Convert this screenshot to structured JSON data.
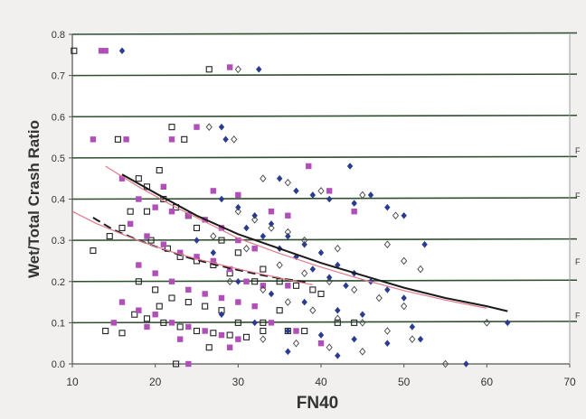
{
  "chart_data": {
    "type": "scatter",
    "xlabel": "FN40",
    "ylabel": "Wet/Total Crash Ratio",
    "xlim": [
      10,
      70
    ],
    "ylim": [
      0.0,
      0.8
    ],
    "x_ticks": [
      "10",
      "20",
      "30",
      "40",
      "50",
      "60",
      "70"
    ],
    "y_ticks": [
      "0.0",
      "0.1",
      "0.2",
      "0.3",
      "0.4",
      "0.5",
      "0.6",
      "0.7",
      "0.8"
    ],
    "grid": true,
    "right_edge_labels": [
      "F",
      "F",
      "F",
      "F"
    ],
    "colors": {
      "background": "#f1f0ee",
      "plot_area": "#ffffff",
      "gridline": "#2f4f2f",
      "axis": "#555555",
      "text": "#333333",
      "blue_diamond": "#2b3c8f",
      "open_diamond": "#444444",
      "open_square": "#222222",
      "magenta_square": "#b04fb8",
      "fit_black": "#1a1a1a",
      "fit_red": "#e07a8a"
    },
    "series": [
      {
        "marker": "open-square",
        "points": [
          [
            10.2,
            0.76
          ],
          [
            15.5,
            0.545
          ],
          [
            20.5,
            0.47
          ],
          [
            22,
            0.575
          ],
          [
            23.5,
            0.545
          ],
          [
            26.5,
            0.715
          ],
          [
            18,
            0.45
          ],
          [
            19,
            0.43
          ],
          [
            21,
            0.4
          ],
          [
            22.5,
            0.38
          ],
          [
            24,
            0.36
          ],
          [
            17,
            0.37
          ],
          [
            16,
            0.33
          ],
          [
            14.5,
            0.31
          ],
          [
            12.5,
            0.275
          ],
          [
            19.5,
            0.3
          ],
          [
            21.5,
            0.28
          ],
          [
            23,
            0.26
          ],
          [
            25,
            0.25
          ],
          [
            27,
            0.24
          ],
          [
            29,
            0.22
          ],
          [
            32,
            0.2
          ],
          [
            18,
            0.2
          ],
          [
            20,
            0.18
          ],
          [
            22,
            0.16
          ],
          [
            24,
            0.15
          ],
          [
            26,
            0.14
          ],
          [
            28,
            0.13
          ],
          [
            17.5,
            0.12
          ],
          [
            19,
            0.11
          ],
          [
            21,
            0.1
          ],
          [
            23,
            0.09
          ],
          [
            25,
            0.08
          ],
          [
            27,
            0.075
          ],
          [
            29,
            0.07
          ],
          [
            31,
            0.065
          ],
          [
            33,
            0.08
          ],
          [
            14,
            0.08
          ],
          [
            16,
            0.075
          ],
          [
            22.5,
            0.0
          ],
          [
            26.5,
            0.04
          ],
          [
            19,
            0.37
          ],
          [
            25,
            0.33
          ],
          [
            28,
            0.3
          ],
          [
            30,
            0.27
          ],
          [
            33,
            0.23
          ],
          [
            35,
            0.2
          ],
          [
            37,
            0.19
          ],
          [
            39,
            0.18
          ],
          [
            40,
            0.17
          ],
          [
            42,
            0.1
          ],
          [
            44,
            0.1
          ],
          [
            30,
            0.1
          ],
          [
            33,
            0.1
          ],
          [
            36,
            0.08
          ],
          [
            38,
            0.08
          ],
          [
            20.5,
            0.14
          ],
          [
            35,
            0.13
          ]
        ]
      },
      {
        "marker": "magenta-square",
        "points": [
          [
            13.5,
            0.76
          ],
          [
            14,
            0.76
          ],
          [
            29,
            0.72
          ],
          [
            12.5,
            0.545
          ],
          [
            16.5,
            0.545
          ],
          [
            25,
            0.575
          ],
          [
            22,
            0.545
          ],
          [
            38.5,
            0.48
          ],
          [
            16,
            0.45
          ],
          [
            18,
            0.4
          ],
          [
            20,
            0.38
          ],
          [
            22,
            0.37
          ],
          [
            24,
            0.36
          ],
          [
            26,
            0.35
          ],
          [
            28,
            0.33
          ],
          [
            30,
            0.3
          ],
          [
            32,
            0.28
          ],
          [
            17,
            0.34
          ],
          [
            19,
            0.31
          ],
          [
            21,
            0.29
          ],
          [
            23,
            0.27
          ],
          [
            25,
            0.26
          ],
          [
            27,
            0.25
          ],
          [
            29,
            0.23
          ],
          [
            31,
            0.2
          ],
          [
            33,
            0.19
          ],
          [
            36,
            0.19
          ],
          [
            18,
            0.24
          ],
          [
            20,
            0.22
          ],
          [
            22,
            0.2
          ],
          [
            24,
            0.18
          ],
          [
            26,
            0.17
          ],
          [
            28,
            0.16
          ],
          [
            30,
            0.15
          ],
          [
            32,
            0.14
          ],
          [
            16,
            0.15
          ],
          [
            18,
            0.13
          ],
          [
            20,
            0.12
          ],
          [
            22,
            0.1
          ],
          [
            24,
            0.09
          ],
          [
            26,
            0.08
          ],
          [
            28,
            0.07
          ],
          [
            30,
            0.06
          ],
          [
            15,
            0.1
          ],
          [
            19,
            0.09
          ],
          [
            23,
            0.06
          ],
          [
            29,
            0.04
          ],
          [
            24,
            0.0
          ],
          [
            34,
            0.37
          ],
          [
            36,
            0.36
          ],
          [
            41,
            0.42
          ],
          [
            44,
            0.37
          ],
          [
            34,
            0.1
          ],
          [
            37,
            0.08
          ],
          [
            40,
            0.05
          ],
          [
            21,
            0.43
          ],
          [
            27,
            0.42
          ],
          [
            30,
            0.41
          ]
        ]
      },
      {
        "marker": "blue-diamond",
        "points": [
          [
            16,
            0.76
          ],
          [
            32.5,
            0.715
          ],
          [
            28,
            0.575
          ],
          [
            28.5,
            0.545
          ],
          [
            43.5,
            0.48
          ],
          [
            35,
            0.45
          ],
          [
            37,
            0.42
          ],
          [
            39,
            0.41
          ],
          [
            41,
            0.4
          ],
          [
            44,
            0.39
          ],
          [
            46,
            0.41
          ],
          [
            48,
            0.38
          ],
          [
            50,
            0.36
          ],
          [
            52.5,
            0.29
          ],
          [
            28,
            0.4
          ],
          [
            30,
            0.38
          ],
          [
            32,
            0.36
          ],
          [
            34,
            0.34
          ],
          [
            36,
            0.31
          ],
          [
            38,
            0.29
          ],
          [
            40,
            0.27
          ],
          [
            42,
            0.24
          ],
          [
            44,
            0.22
          ],
          [
            46,
            0.2
          ],
          [
            48,
            0.18
          ],
          [
            50,
            0.16
          ],
          [
            31,
            0.33
          ],
          [
            33,
            0.31
          ],
          [
            35,
            0.28
          ],
          [
            37,
            0.26
          ],
          [
            39,
            0.23
          ],
          [
            41,
            0.21
          ],
          [
            43,
            0.19
          ],
          [
            30,
            0.2
          ],
          [
            34,
            0.17
          ],
          [
            38,
            0.15
          ],
          [
            42,
            0.13
          ],
          [
            45,
            0.12
          ],
          [
            28,
            0.12
          ],
          [
            32,
            0.1
          ],
          [
            36,
            0.08
          ],
          [
            40,
            0.07
          ],
          [
            44,
            0.06
          ],
          [
            48,
            0.05
          ],
          [
            52,
            0.06
          ],
          [
            36,
            0.03
          ],
          [
            42,
            0.02
          ],
          [
            62.5,
            0.1
          ],
          [
            57.5,
            0.0
          ],
          [
            25,
            0.3
          ],
          [
            27,
            0.27
          ],
          [
            51,
            0.09
          ]
        ]
      },
      {
        "marker": "open-diamond",
        "points": [
          [
            30,
            0.715
          ],
          [
            26.5,
            0.575
          ],
          [
            29.5,
            0.545
          ],
          [
            33,
            0.45
          ],
          [
            36,
            0.44
          ],
          [
            40,
            0.42
          ],
          [
            45,
            0.41
          ],
          [
            30,
            0.37
          ],
          [
            32,
            0.35
          ],
          [
            34,
            0.33
          ],
          [
            36,
            0.32
          ],
          [
            38,
            0.3
          ],
          [
            42,
            0.28
          ],
          [
            48,
            0.29
          ],
          [
            50,
            0.25
          ],
          [
            35,
            0.24
          ],
          [
            38,
            0.22
          ],
          [
            41,
            0.2
          ],
          [
            44,
            0.18
          ],
          [
            47,
            0.16
          ],
          [
            50,
            0.14
          ],
          [
            29,
            0.2
          ],
          [
            33,
            0.18
          ],
          [
            36,
            0.15
          ],
          [
            39,
            0.13
          ],
          [
            42,
            0.11
          ],
          [
            45,
            0.1
          ],
          [
            48,
            0.08
          ],
          [
            51,
            0.06
          ],
          [
            33,
            0.06
          ],
          [
            37,
            0.05
          ],
          [
            41,
            0.04
          ],
          [
            45,
            0.03
          ],
          [
            55,
            0.0
          ],
          [
            60,
            0.1
          ],
          [
            27,
            0.31
          ],
          [
            31,
            0.28
          ],
          [
            49,
            0.36
          ],
          [
            52,
            0.23
          ]
        ]
      }
    ],
    "fit_lines": [
      {
        "style": "solid",
        "color_key": "fit_black",
        "points": [
          [
            16,
            0.46
          ],
          [
            20,
            0.415
          ],
          [
            25,
            0.36
          ],
          [
            30,
            0.315
          ],
          [
            35,
            0.28
          ],
          [
            40,
            0.245
          ],
          [
            45,
            0.215
          ],
          [
            50,
            0.185
          ],
          [
            55,
            0.16
          ],
          [
            60,
            0.14
          ],
          [
            62.5,
            0.128
          ]
        ]
      },
      {
        "style": "solid",
        "color_key": "fit_red",
        "points": [
          [
            14,
            0.48
          ],
          [
            18,
            0.43
          ],
          [
            22,
            0.385
          ],
          [
            26,
            0.345
          ],
          [
            30,
            0.305
          ],
          [
            35,
            0.268
          ],
          [
            40,
            0.235
          ],
          [
            45,
            0.205
          ],
          [
            50,
            0.178
          ],
          [
            55,
            0.155
          ],
          [
            60,
            0.135
          ]
        ]
      },
      {
        "style": "dashed",
        "color_key": "fit_black",
        "points": [
          [
            12.5,
            0.355
          ],
          [
            15,
            0.325
          ],
          [
            18,
            0.3
          ],
          [
            21,
            0.278
          ],
          [
            24,
            0.258
          ],
          [
            27,
            0.242
          ],
          [
            30,
            0.228
          ],
          [
            33,
            0.215
          ],
          [
            36,
            0.205
          ],
          [
            38.5,
            0.198
          ]
        ]
      },
      {
        "style": "solid",
        "color_key": "fit_red",
        "points": [
          [
            10,
            0.37
          ],
          [
            13,
            0.34
          ],
          [
            16,
            0.315
          ],
          [
            19,
            0.292
          ],
          [
            22,
            0.272
          ],
          [
            25,
            0.255
          ],
          [
            28,
            0.24
          ],
          [
            31,
            0.226
          ],
          [
            34,
            0.213
          ],
          [
            37,
            0.2
          ],
          [
            39,
            0.192
          ]
        ]
      }
    ]
  }
}
